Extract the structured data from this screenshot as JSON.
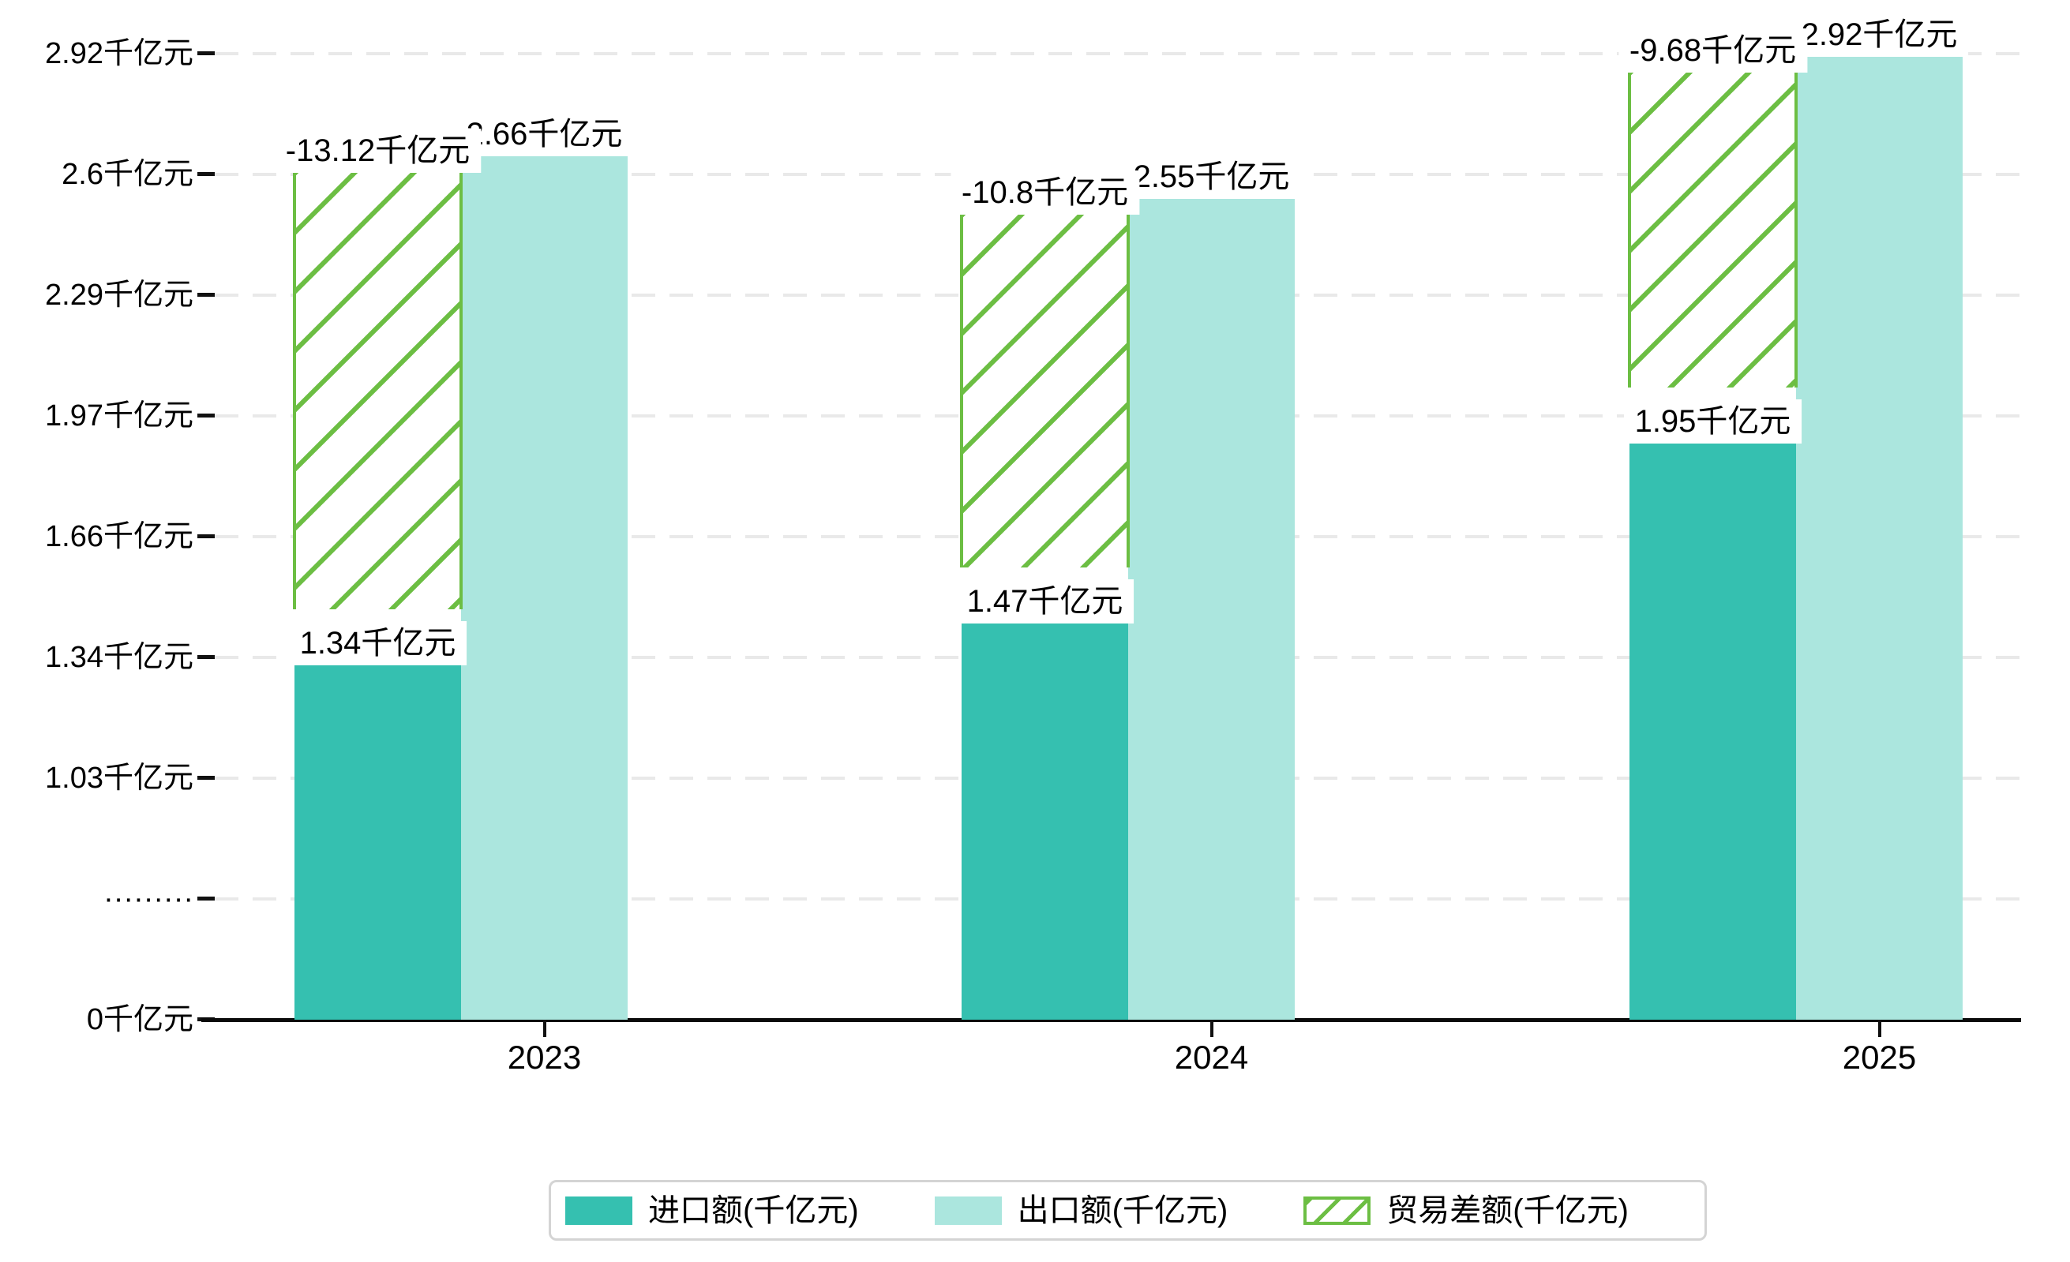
{
  "chart_data": {
    "type": "bar",
    "title": "",
    "xlabel": "",
    "ylabel": "",
    "unit": "千亿元",
    "categories": [
      "2023",
      "2024",
      "2025"
    ],
    "series": [
      {
        "name": "进口额(千亿元)",
        "values": [
          1.34,
          1.47,
          1.95
        ],
        "value_labels": [
          "1.34千亿元",
          "1.47千亿元",
          "1.95千亿元"
        ],
        "color": "#35c0b0",
        "style": "solid"
      },
      {
        "name": "出口额(千亿元)",
        "values": [
          2.66,
          2.55,
          2.92
        ],
        "value_labels": [
          "2.66千亿元",
          "2.55千亿元",
          "2.92千亿元"
        ],
        "color": "#abe6de",
        "style": "solid"
      },
      {
        "name": "贸易差额(千亿元)",
        "values": [
          -13.12,
          -10.8,
          -9.68
        ],
        "value_labels": [
          "-13.12千亿元",
          "-10.8千亿元",
          "-9.68千亿元"
        ],
        "color": "#6cbe43",
        "style": "hatched",
        "bar_spans": [
          [
            1.47,
            2.62
          ],
          [
            1.58,
            2.51
          ],
          [
            2.05,
            2.88
          ]
        ]
      }
    ],
    "y_ticks": [
      {
        "label": "2.92千亿元",
        "value": 2.92
      },
      {
        "label": "2.6千亿元",
        "value": 2.6
      },
      {
        "label": "2.29千亿元",
        "value": 2.29
      },
      {
        "label": "1.97千亿元",
        "value": 1.97
      },
      {
        "label": "1.66千亿元",
        "value": 1.66
      },
      {
        "label": "1.34千亿元",
        "value": 1.34
      },
      {
        "label": "1.03千亿元",
        "value": 1.03
      },
      {
        "label": "·········",
        "value": null
      },
      {
        "label": "0千亿元",
        "value": 0
      }
    ],
    "axis_break_below": 1.03,
    "grid": "dashed-horizontal",
    "legend_position": "bottom-center",
    "colors": {
      "import": "#35c0b0",
      "export": "#abe6de",
      "balance_hatch": "#6cbe43",
      "gridline": "#e9e9e9",
      "axis": "#0a0a0a",
      "label_text": "#000000",
      "label_background": "#ffffff",
      "legend_border": "#d4d4d4"
    }
  },
  "legend": {
    "items": [
      {
        "label": "进口额(千亿元)",
        "swatch": "import-solid"
      },
      {
        "label": "出口额(千亿元)",
        "swatch": "export-solid"
      },
      {
        "label": "贸易差额(千亿元)",
        "swatch": "balance-hatched"
      }
    ]
  }
}
